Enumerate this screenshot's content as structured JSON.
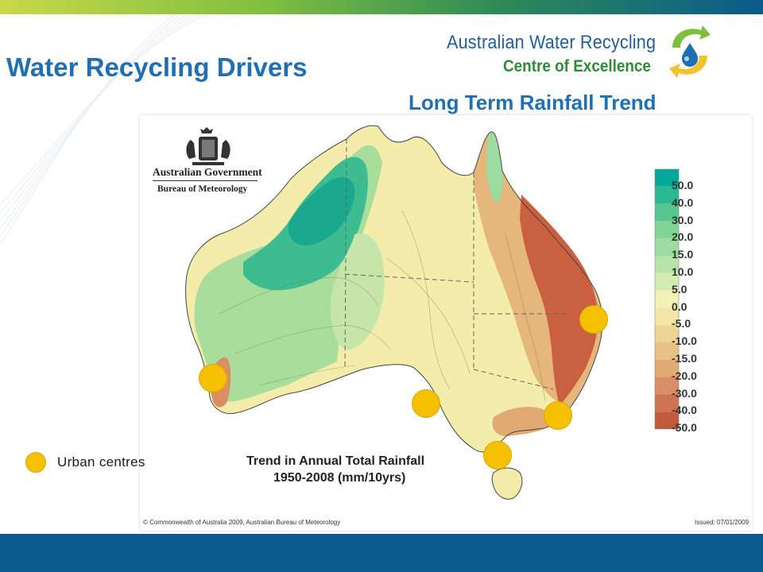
{
  "slide": {
    "title": "Water Recycling Drivers",
    "subtitle": "Long Term Rainfall Trend"
  },
  "logo": {
    "line1": "Australian Water Recycling",
    "line2": "Centre of Excellence",
    "icon": "recycling-arrows-water-drop-icon"
  },
  "map": {
    "agency_line1": "Australian Government",
    "agency_line2": "Bureau of Meteorology",
    "crest_icon": "commonwealth-coat-of-arms-icon",
    "caption_line1": "Trend in Annual Total Rainfall",
    "caption_line2": "1950-2008 (mm/10yrs)",
    "copyright": "© Commonwealth of Australia 2009, Australian Bureau of Meteorology",
    "issued": "Issued: 07/01/2009",
    "legend_scale": [
      {
        "label": "50.0",
        "color": "#00a89a"
      },
      {
        "label": "40.0",
        "color": "#2bb894"
      },
      {
        "label": "30.0",
        "color": "#58c78f"
      },
      {
        "label": "20.0",
        "color": "#7fd496"
      },
      {
        "label": "15.0",
        "color": "#9ddca0"
      },
      {
        "label": "10.0",
        "color": "#b7e4a8"
      },
      {
        "label": "5.0",
        "color": "#d3edb0"
      },
      {
        "label": "0.0",
        "color": "#f3f1b6"
      },
      {
        "label": "-5.0",
        "color": "#f4e7a6"
      },
      {
        "label": "-10.0",
        "color": "#efd497"
      },
      {
        "label": "-15.0",
        "color": "#e8c088"
      },
      {
        "label": "-20.0",
        "color": "#e1a974"
      },
      {
        "label": "-30.0",
        "color": "#d98e63"
      },
      {
        "label": "-40.0",
        "color": "#cf7452"
      },
      {
        "label": "-50.0",
        "color": "#c25a3e"
      }
    ]
  },
  "urban_legend": {
    "label": "Urban centres",
    "color": "#f5c000"
  },
  "colors": {
    "title_blue": "#1f6fb5",
    "bottom_bar": "#0b5a8c"
  }
}
